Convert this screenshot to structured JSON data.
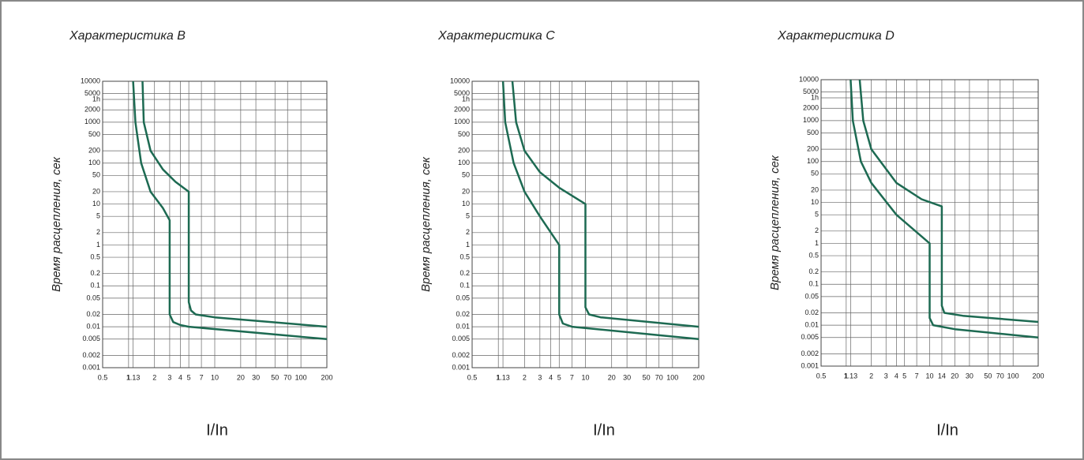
{
  "chart_data": [
    {
      "type": "line",
      "title": "Характеристика B",
      "ylabel": "Время расцепления, сек",
      "xlabel": "I/In",
      "log_x": true,
      "log_y": true,
      "grid": true,
      "xlim": [
        0.5,
        200
      ],
      "ylim": [
        0.001,
        10000
      ],
      "xticks": [
        0.5,
        1,
        1.13,
        2,
        3,
        4,
        5,
        7,
        10,
        20,
        30,
        50,
        70,
        100,
        200
      ],
      "yticks": [
        0.001,
        0.002,
        0.005,
        0.01,
        0.02,
        0.05,
        0.1,
        0.2,
        0.5,
        1,
        2,
        5,
        10,
        20,
        50,
        100,
        200,
        500,
        1000,
        2000,
        {
          "value": 3600,
          "label": "1h"
        },
        5000,
        10000
      ],
      "series": [
        {
          "color": "#1d6a52",
          "x": [
            1.13,
            1.2,
            1.4,
            1.8,
            2.5,
            3,
            3,
            3.3,
            4,
            5,
            200
          ],
          "values": [
            10000,
            1000,
            100,
            20,
            8,
            4,
            0.02,
            0.013,
            0.011,
            0.01,
            0.005
          ]
        },
        {
          "color": "#1d6a52",
          "x": [
            1.45,
            1.5,
            1.8,
            2.5,
            3.5,
            5,
            5,
            5.3,
            6,
            10,
            200
          ],
          "values": [
            10000,
            1000,
            200,
            70,
            35,
            20,
            0.04,
            0.025,
            0.02,
            0.017,
            0.01
          ]
        }
      ]
    },
    {
      "type": "line",
      "title": "Характеристика C",
      "ylabel": "Время расцепления, сек",
      "xlabel": "I/In",
      "log_x": true,
      "log_y": true,
      "grid": true,
      "xlim": [
        0.5,
        200
      ],
      "ylim": [
        0.001,
        10000
      ],
      "xticks": [
        0.5,
        1,
        1.13,
        2,
        3,
        4,
        5,
        7,
        10,
        20,
        30,
        50,
        70,
        100,
        200
      ],
      "yticks": [
        0.001,
        0.002,
        0.005,
        0.01,
        0.02,
        0.05,
        0.1,
        0.2,
        0.5,
        1,
        2,
        5,
        10,
        20,
        50,
        100,
        200,
        500,
        1000,
        2000,
        {
          "value": 3600,
          "label": "1h"
        },
        5000,
        10000
      ],
      "series": [
        {
          "color": "#1d6a52",
          "x": [
            1.13,
            1.2,
            1.5,
            2,
            3,
            5,
            5,
            5.5,
            7,
            200
          ],
          "values": [
            10000,
            1000,
            100,
            20,
            5,
            1,
            0.02,
            0.012,
            0.01,
            0.005
          ]
        },
        {
          "color": "#1d6a52",
          "x": [
            1.45,
            1.6,
            2,
            3,
            5,
            10,
            10,
            11,
            15,
            200
          ],
          "values": [
            10000,
            1000,
            200,
            60,
            25,
            10,
            0.03,
            0.02,
            0.017,
            0.01
          ]
        }
      ]
    },
    {
      "type": "line",
      "title": "Характеристика D",
      "ylabel": "Время расцепления, сек",
      "xlabel": "I/In",
      "log_x": true,
      "log_y": true,
      "grid": true,
      "xlim": [
        0.5,
        200
      ],
      "ylim": [
        0.001,
        10000
      ],
      "xticks": [
        0.5,
        1,
        1.13,
        2,
        3,
        4,
        5,
        7,
        10,
        14,
        20,
        30,
        50,
        70,
        100,
        200
      ],
      "yticks": [
        0.001,
        0.002,
        0.005,
        0.01,
        0.02,
        0.05,
        0.1,
        0.2,
        0.5,
        1,
        2,
        5,
        10,
        20,
        50,
        100,
        200,
        500,
        1000,
        2000,
        {
          "value": 3600,
          "label": "1h"
        },
        5000,
        10000
      ],
      "series": [
        {
          "color": "#1d6a52",
          "x": [
            1.13,
            1.2,
            1.5,
            2,
            4,
            10,
            10,
            11,
            20,
            200
          ],
          "values": [
            10000,
            1000,
            100,
            30,
            5,
            1,
            0.015,
            0.01,
            0.008,
            0.005
          ]
        },
        {
          "color": "#1d6a52",
          "x": [
            1.45,
            1.6,
            2,
            4,
            8,
            14,
            14,
            15,
            25,
            200
          ],
          "values": [
            10000,
            1000,
            200,
            30,
            12,
            8,
            0.03,
            0.02,
            0.017,
            0.012
          ]
        }
      ]
    }
  ]
}
